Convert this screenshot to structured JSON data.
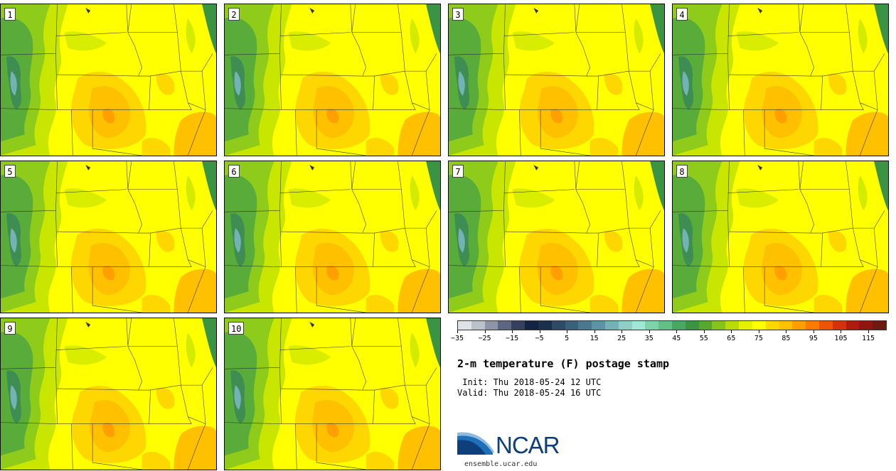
{
  "members": [
    {
      "label": "1"
    },
    {
      "label": "2"
    },
    {
      "label": "3"
    },
    {
      "label": "4"
    },
    {
      "label": "5"
    },
    {
      "label": "6"
    },
    {
      "label": "7"
    },
    {
      "label": "8"
    },
    {
      "label": "9"
    },
    {
      "label": "10"
    }
  ],
  "colorbar": {
    "tick_labels": [
      "−35",
      "−25",
      "−15",
      "−5",
      "5",
      "15",
      "25",
      "35",
      "45",
      "55",
      "65",
      "75",
      "85",
      "95",
      "105",
      "115"
    ],
    "colors": [
      "#dfe3e8",
      "#bcc2cb",
      "#8d95a6",
      "#5d6680",
      "#34405c",
      "#142343",
      "#1c2f4d",
      "#2d4a66",
      "#3b6079",
      "#4a788e",
      "#5c94a3",
      "#75b2b6",
      "#8fcfc6",
      "#9fe8d8",
      "#7fd3a8",
      "#62bf86",
      "#48a862",
      "#3a9444",
      "#56a82e",
      "#86c31d",
      "#b8dc0a",
      "#e6f000",
      "#ffff00",
      "#ffd700",
      "#ffc000",
      "#ff9f00",
      "#ff7a00",
      "#ef5308",
      "#d4310c",
      "#b11a0f",
      "#8e1510",
      "#6e1a10"
    ]
  },
  "title": "2-m temperature (F) postage stamp",
  "init_line": " Init: Thu 2018-05-24 12 UTC",
  "valid_line": "Valid: Thu 2018-05-24 16 UTC",
  "logo": {
    "text": "NCAR",
    "url": "ensemble.ucar.edu"
  }
}
